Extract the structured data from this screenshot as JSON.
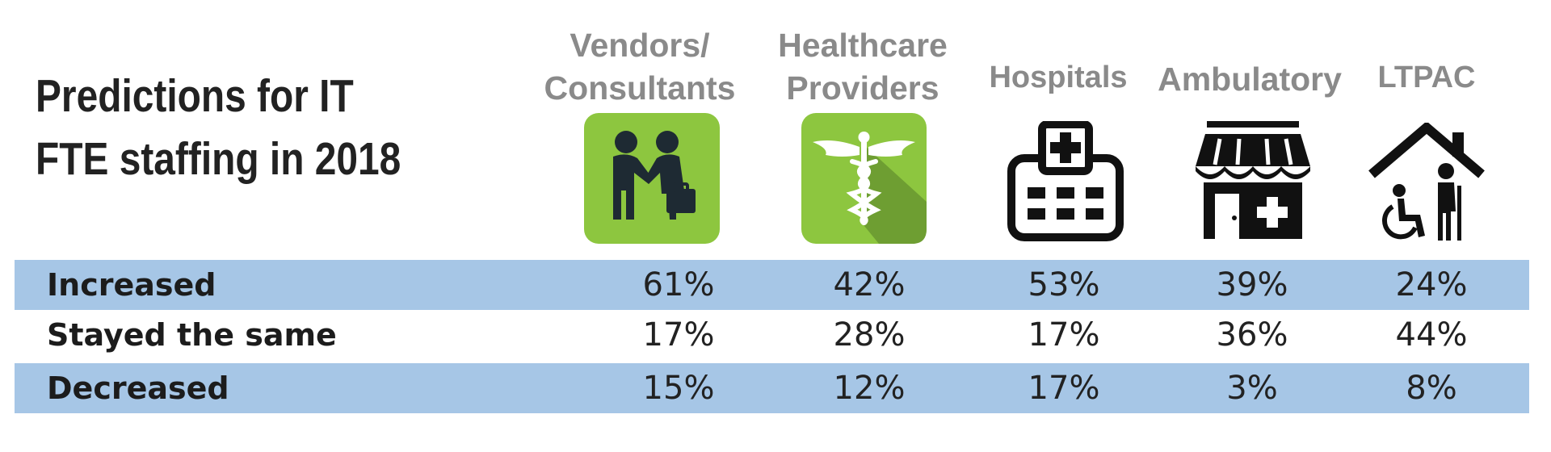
{
  "chart_data": {
    "type": "table",
    "title_lines": [
      "Predictions for IT",
      "FTE staffing in 2018"
    ],
    "columns": [
      {
        "lines": [
          "Vendors/",
          "Consultants"
        ],
        "icon": "handshake-icon"
      },
      {
        "lines": [
          "Healthcare",
          "Providers"
        ],
        "icon": "caduceus-icon"
      },
      {
        "lines": [
          "Hospitals"
        ],
        "icon": "hospital-icon"
      },
      {
        "lines": [
          "Ambulatory"
        ],
        "icon": "clinic-storefront-icon"
      },
      {
        "lines": [
          "LTPAC"
        ],
        "icon": "home-care-icon"
      }
    ],
    "rows": [
      {
        "label": "Increased",
        "values": [
          "61%",
          "42%",
          "53%",
          "39%",
          "24%"
        ]
      },
      {
        "label": "Stayed the same",
        "values": [
          "17%",
          "28%",
          "17%",
          "36%",
          "44%"
        ]
      },
      {
        "label": "Decreased",
        "values": [
          "15%",
          "12%",
          "17%",
          "3%",
          "8%"
        ]
      }
    ],
    "colors": {
      "row_band": "#a6c6e6",
      "icon_green": "#8dc63f",
      "header_text": "#8a8a8a",
      "icon_dark": "#1e2a33"
    }
  }
}
